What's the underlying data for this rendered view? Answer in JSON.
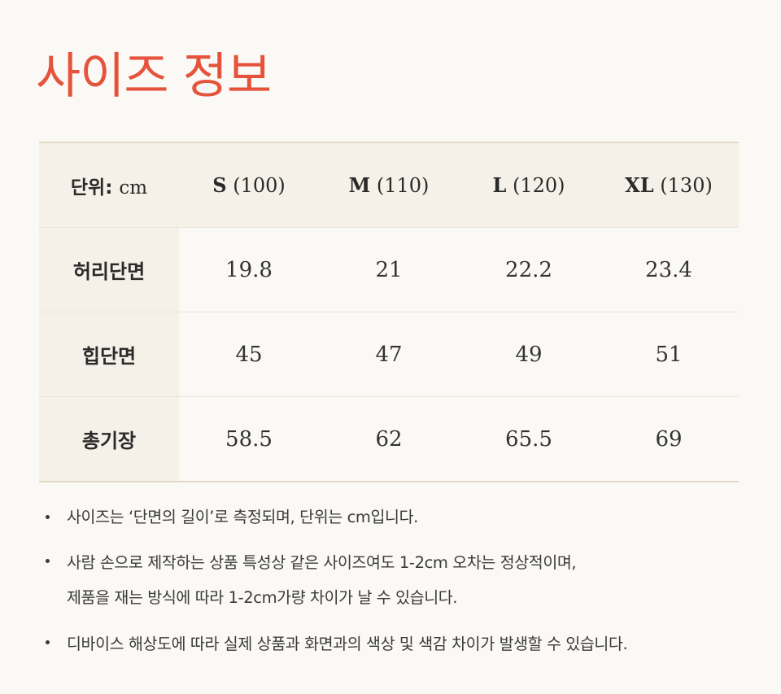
{
  "title": "사이즈 정보",
  "table": {
    "unit_label": "단위:",
    "unit_value": "cm",
    "columns": [
      {
        "size": "S",
        "num": "(100)"
      },
      {
        "size": "M",
        "num": "(110)"
      },
      {
        "size": "L",
        "num": "(120)"
      },
      {
        "size": "XL",
        "num": "(130)"
      }
    ],
    "rows": [
      {
        "label": "허리단면",
        "values": [
          "19.8",
          "21",
          "22.2",
          "23.4"
        ]
      },
      {
        "label": "힙단면",
        "values": [
          "45",
          "47",
          "49",
          "51"
        ]
      },
      {
        "label": "총기장",
        "values": [
          "58.5",
          "62",
          "65.5",
          "69"
        ]
      }
    ]
  },
  "notes": [
    "사이즈는 ‘단면의 길이’로 측정되며, 단위는 cm입니다.",
    "사람 손으로 제작하는 상품 특성상 같은 사이즈여도 1-2cm 오차는 정상적이며,\n제품을 재는 방식에 따라 1-2cm가량 차이가 날 수 있습니다.",
    "디바이스 해상도에 따라 실제 상품과 화면과의 색상 및 색감 차이가 발생할 수 있습니다."
  ],
  "colors": {
    "accent": "#e5533c",
    "header_bg": "#f6f1e8",
    "page_bg": "#fbf9f5",
    "border": "#e3dac6"
  }
}
